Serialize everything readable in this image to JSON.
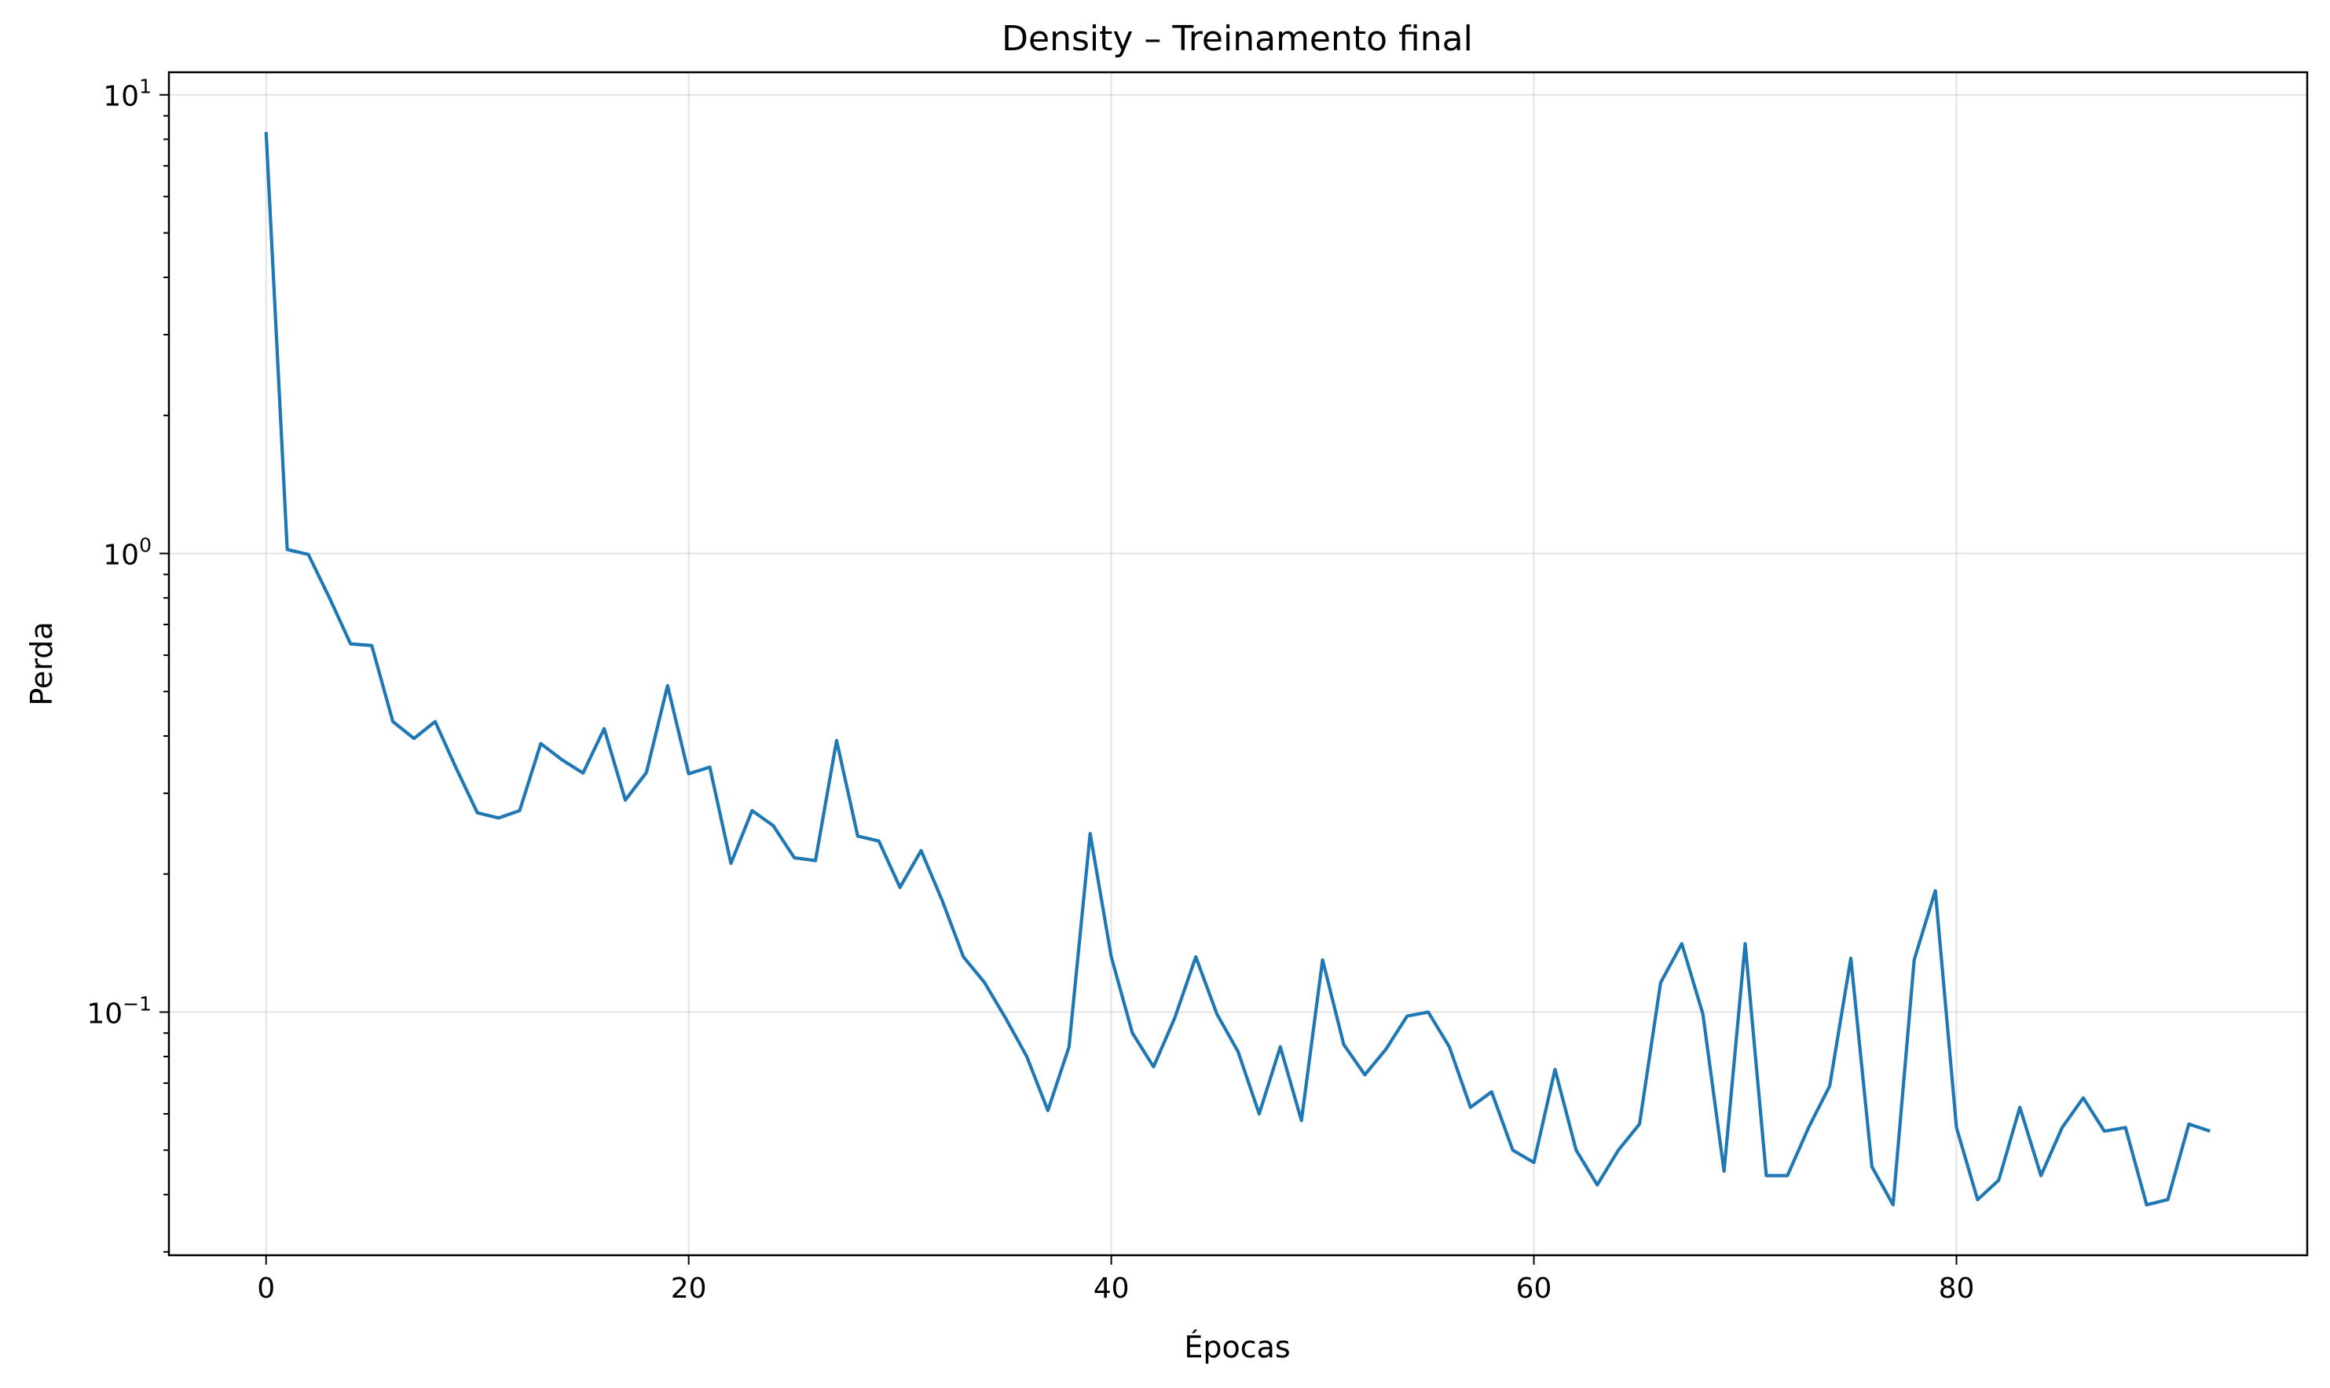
{
  "chart_data": {
    "type": "line",
    "title": "Density – Treinamento final",
    "xlabel": "Épocas",
    "ylabel": "Perda",
    "yscale": "log",
    "xlim": [
      -4.6,
      96.6
    ],
    "ylim": [
      0.0295,
      11.2
    ],
    "xticks": [
      0,
      20,
      40,
      60,
      80
    ],
    "xtick_labels": [
      "0",
      "20",
      "40",
      "60",
      "80"
    ],
    "yticks": [
      {
        "value": 10,
        "base": "10",
        "exp": "1"
      },
      {
        "value": 1,
        "base": "10",
        "exp": "0"
      },
      {
        "value": 0.1,
        "base": "10",
        "exp": "−1"
      }
    ],
    "grid": true,
    "series": [
      {
        "color": "#1f77b4",
        "x": [
          0,
          1,
          2,
          3,
          4,
          5,
          6,
          7,
          8,
          9,
          10,
          11,
          12,
          13,
          14,
          15,
          16,
          17,
          18,
          19,
          20,
          21,
          22,
          23,
          24,
          25,
          26,
          27,
          28,
          29,
          30,
          31,
          32,
          33,
          34,
          35,
          36,
          37,
          38,
          39,
          40,
          41,
          42,
          43,
          44,
          45,
          46,
          47,
          48,
          49,
          50,
          51,
          52,
          53,
          54,
          55,
          56,
          57,
          58,
          59,
          60,
          61,
          62,
          63,
          64,
          65,
          66,
          67,
          68,
          69,
          70,
          71,
          72,
          73,
          74,
          75,
          76,
          77,
          78,
          79,
          80,
          81,
          82,
          83,
          84,
          85,
          86,
          87,
          88,
          89,
          90,
          91,
          92
        ],
        "values": [
          8.3,
          1.02,
          0.995,
          0.8,
          0.635,
          0.63,
          0.43,
          0.395,
          0.43,
          0.34,
          0.272,
          0.265,
          0.275,
          0.385,
          0.355,
          0.332,
          0.415,
          0.29,
          0.333,
          0.515,
          0.331,
          0.342,
          0.211,
          0.275,
          0.255,
          0.217,
          0.214,
          0.391,
          0.242,
          0.236,
          0.187,
          0.225,
          0.175,
          0.132,
          0.116,
          0.097,
          0.08,
          0.061,
          0.084,
          0.245,
          0.132,
          0.09,
          0.076,
          0.097,
          0.132,
          0.099,
          0.082,
          0.06,
          0.084,
          0.058,
          0.13,
          0.085,
          0.073,
          0.083,
          0.098,
          0.1,
          0.084,
          0.062,
          0.067,
          0.05,
          0.047,
          0.075,
          0.05,
          0.042,
          0.05,
          0.057,
          0.116,
          0.141,
          0.099,
          0.045,
          0.141,
          0.044,
          0.044,
          0.056,
          0.069,
          0.131,
          0.046,
          0.038,
          0.13,
          0.184,
          0.056,
          0.039,
          0.043,
          0.062,
          0.044,
          0.056,
          0.065,
          0.055,
          0.056,
          0.038,
          0.039,
          0.057,
          0.055
        ]
      }
    ]
  }
}
